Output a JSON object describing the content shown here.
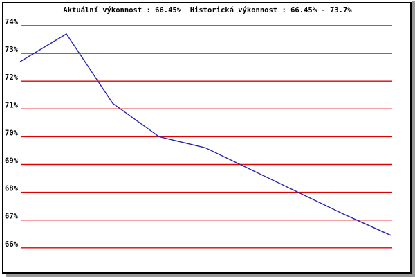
{
  "title": "Aktuální výkonnost : 66.45%  Historická výkonnost : 66.45% - 73.7%",
  "stats": {
    "current_label": "Aktuální výkonnost",
    "current_value": "66.45%",
    "historical_label": "Historická výkonnost",
    "historical_range": "66.45% - 73.7%"
  },
  "colors": {
    "grid": "#e00000",
    "line": "#2525b2",
    "text": "#000000",
    "panel_border": "#000000",
    "shadow": "#9a9a9a",
    "background": "#ffffff"
  },
  "chart_data": {
    "type": "line",
    "title": "Aktuální výkonnost : 66.45%  Historická výkonnost : 66.45% - 73.7%",
    "x": [
      1,
      2,
      3,
      4,
      5,
      6,
      7,
      8,
      9
    ],
    "values": [
      72.7,
      73.7,
      71.2,
      70.0,
      69.6,
      68.8,
      68.0,
      67.2,
      66.45
    ],
    "series_name": "výkonnost",
    "xlabel": "",
    "ylabel": "",
    "x_tick_labels": "none",
    "yticks": [
      74,
      73,
      72,
      71,
      70,
      69,
      68,
      67,
      66
    ],
    "ytick_labels": [
      "74%",
      "73%",
      "72%",
      "71%",
      "70%",
      "69%",
      "68%",
      "67%",
      "66%"
    ],
    "ylim": [
      66,
      74
    ],
    "grid": "horizontal only",
    "legend": "none"
  }
}
